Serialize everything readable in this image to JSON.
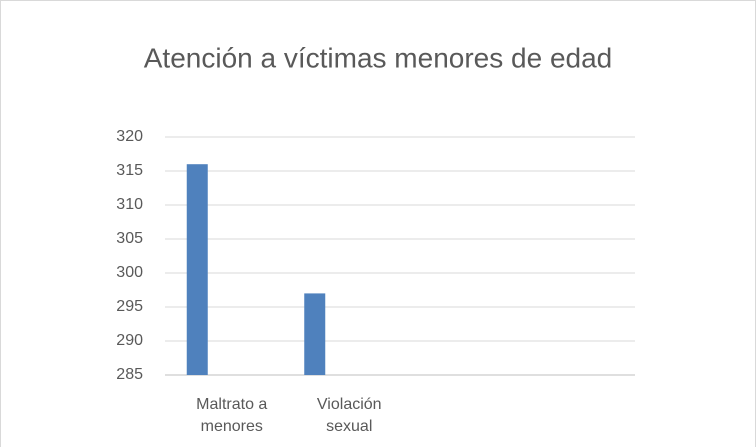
{
  "chart_data": {
    "type": "bar",
    "title": "Atención a víctimas menores de edad",
    "categories": [
      "Maltrato a menores",
      "Violación sexual",
      null,
      null
    ],
    "values": [
      316,
      297,
      null,
      null
    ],
    "color": "#4f81bd",
    "ylim": [
      285,
      320
    ],
    "yticks": [
      285,
      290,
      295,
      300,
      305,
      310,
      315,
      320
    ],
    "grid": true
  }
}
